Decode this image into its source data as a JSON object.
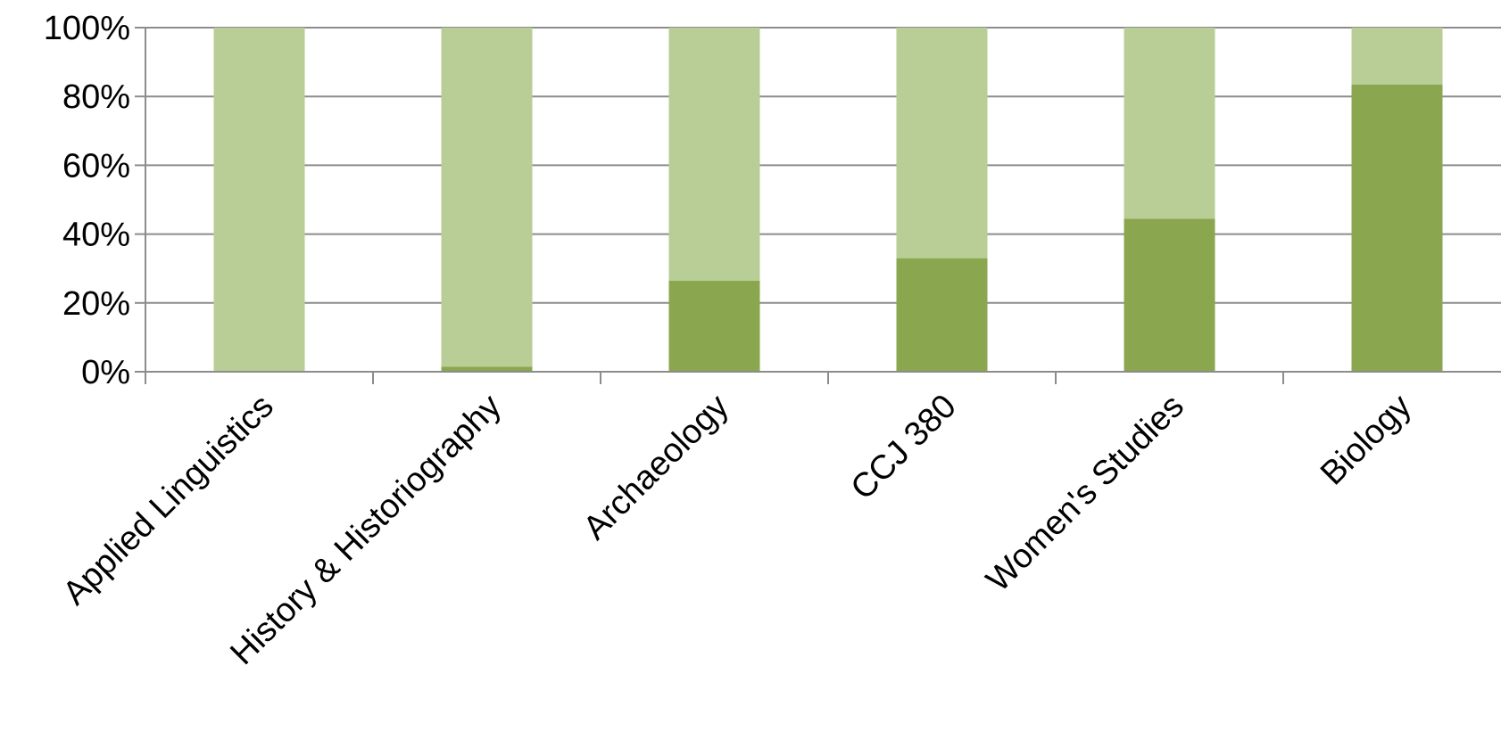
{
  "chart_data": {
    "type": "bar",
    "stacked": true,
    "percent_stacked": true,
    "categories": [
      "Applied Linguistics",
      "History & Historiography",
      "Archaeology",
      "CCJ 380",
      "Women's Studies",
      "Biology"
    ],
    "series": [
      {
        "color": "#8aa74f",
        "values": [
          0,
          1.5,
          26.5,
          33,
          44.5,
          83.5
        ]
      },
      {
        "color": "#b9ce96",
        "values": [
          100,
          98.5,
          73.5,
          67,
          55.5,
          16.5
        ]
      }
    ],
    "title": "",
    "xlabel": "",
    "ylabel": "",
    "ylim": [
      0,
      100
    ],
    "yticks": [
      0,
      20,
      40,
      60,
      80,
      100
    ],
    "ytick_labels": [
      "0%",
      "20%",
      "40%",
      "60%",
      "80%",
      "100%"
    ],
    "grid": true,
    "gridline_color": "#8c8c8c",
    "legend": "none"
  }
}
